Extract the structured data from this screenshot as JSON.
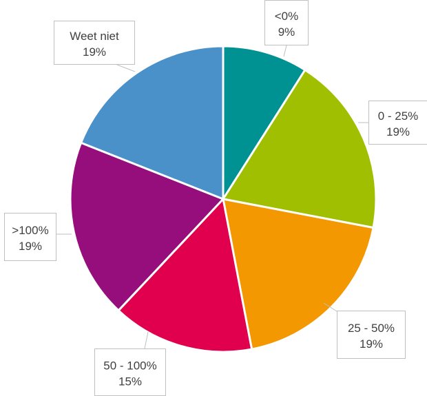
{
  "chart_data": {
    "type": "pie",
    "title": "",
    "slices": [
      {
        "label": "<0%",
        "value": 9,
        "value_label": "9%",
        "color": "#009193"
      },
      {
        "label": "0 - 25%",
        "value": 19,
        "value_label": "19%",
        "color": "#A0BF00"
      },
      {
        "label": "25 - 50%",
        "value": 19,
        "value_label": "19%",
        "color": "#F39800"
      },
      {
        "label": "50 - 100%",
        "value": 15,
        "value_label": "15%",
        "color": "#E0004D"
      },
      {
        "label": ">100%",
        "value": 19,
        "value_label": "19%",
        "color": "#950E7B"
      },
      {
        "label": "Weet niet",
        "value": 19,
        "value_label": "19%",
        "color": "#4A90C9"
      }
    ],
    "start_angle": "12 o'clock",
    "direction": "clockwise",
    "legend": "none",
    "data_labels": "callouts"
  }
}
